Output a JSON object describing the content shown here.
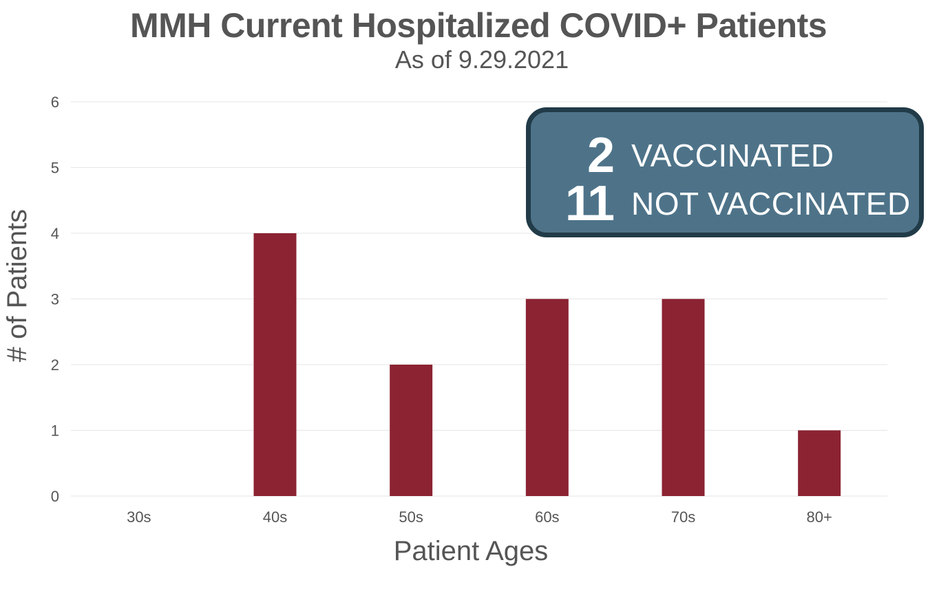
{
  "chart_data": {
    "type": "bar",
    "title": "MMH Current Hospitalized COVID+ Patients",
    "subtitle": "As of 9.29.2021",
    "categories": [
      "30s",
      "40s",
      "50s",
      "60s",
      "70s",
      "80+"
    ],
    "values": [
      0,
      4,
      2,
      3,
      3,
      1
    ],
    "xlabel": "Patient Ages",
    "ylabel": "# of Patients",
    "ylim": [
      0,
      6
    ],
    "yticks": [
      0,
      1,
      2,
      3,
      4,
      5,
      6
    ],
    "grid": true,
    "legend": "none",
    "bar_color": "#8b2332",
    "annotations": [
      {
        "value": "2",
        "label": "VACCINATED"
      },
      {
        "value": "11",
        "label": "NOT VACCINATED"
      }
    ]
  },
  "callout": {
    "background": "#4e7389",
    "border": "#213b48"
  }
}
